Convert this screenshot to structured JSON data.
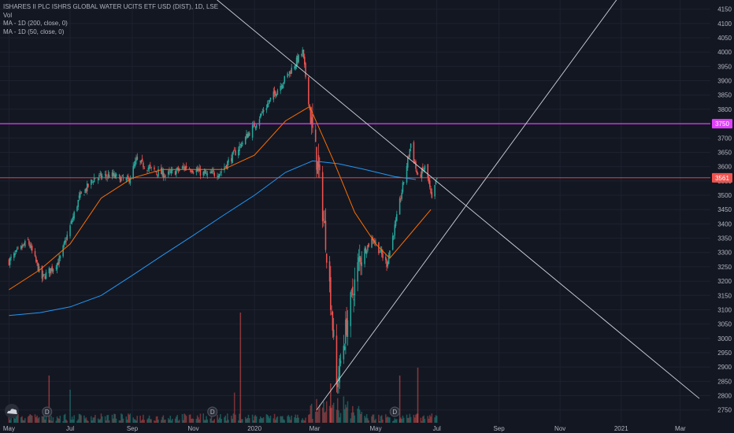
{
  "legend": {
    "title": "ISHARES II PLC ISHRS GLOBAL WATER UCITS ETF USD (DIST), 1D, LSE",
    "vol": "Vol",
    "ma200": "MA - 1D (200, close, 0)",
    "ma50": "MA - 1D (50, close, 0)"
  },
  "colors": {
    "background": "#131722",
    "grid": "#1e2230",
    "up": "#26a69a",
    "down": "#ef5350",
    "ma200": "#2196f3",
    "ma50": "#ff6d00",
    "resistance_line": "#e040fb",
    "price_line": "#ef5350",
    "trendlines": "#d1d4dc"
  },
  "price_tags": {
    "resistance": "3750",
    "current": "3561"
  },
  "chart_data": {
    "type": "candlestick",
    "title": "ISHARES II PLC ISHRS GLOBAL WATER UCITS ETF USD (DIST), 1D, LSE",
    "x_ticks": [
      "May",
      "Jul",
      "Sep",
      "Nov",
      "2020",
      "Mar",
      "May",
      "Jul",
      "Sep",
      "Nov",
      "2021",
      "Mar"
    ],
    "x_range": [
      "2019-05",
      "2021-03"
    ],
    "ylim": [
      2730,
      4160
    ],
    "y_ticks": [
      2750,
      2800,
      2850,
      2900,
      2950,
      3000,
      3050,
      3100,
      3150,
      3200,
      3250,
      3300,
      3350,
      3400,
      3450,
      3500,
      3550,
      3600,
      3650,
      3700,
      3750,
      3800,
      3850,
      3900,
      3950,
      4000,
      4050,
      4100,
      4150
    ],
    "grid": true,
    "horizontal_levels": [
      {
        "name": "resistance",
        "value": 3750
      },
      {
        "name": "last close",
        "value": 3561
      }
    ],
    "close_path": [
      {
        "date": "2019-05-01",
        "close": 3270
      },
      {
        "date": "2019-05-20",
        "close": 3340
      },
      {
        "date": "2019-06-03",
        "close": 3210
      },
      {
        "date": "2019-06-20",
        "close": 3270
      },
      {
        "date": "2019-07-10",
        "close": 3490
      },
      {
        "date": "2019-07-25",
        "close": 3560
      },
      {
        "date": "2019-08-10",
        "close": 3570
      },
      {
        "date": "2019-08-28",
        "close": 3550
      },
      {
        "date": "2019-09-05",
        "close": 3620
      },
      {
        "date": "2019-09-20",
        "close": 3590
      },
      {
        "date": "2019-10-05",
        "close": 3570
      },
      {
        "date": "2019-10-25",
        "close": 3600
      },
      {
        "date": "2019-11-15",
        "close": 3570
      },
      {
        "date": "2019-11-28",
        "close": 3580
      },
      {
        "date": "2019-12-15",
        "close": 3660
      },
      {
        "date": "2019-12-31",
        "close": 3740
      },
      {
        "date": "2020-01-20",
        "close": 3850
      },
      {
        "date": "2020-02-05",
        "close": 3930
      },
      {
        "date": "2020-02-18",
        "close": 4000
      },
      {
        "date": "2020-02-28",
        "close": 3720
      },
      {
        "date": "2020-03-05",
        "close": 3580
      },
      {
        "date": "2020-03-12",
        "close": 3350
      },
      {
        "date": "2020-03-18",
        "close": 3100
      },
      {
        "date": "2020-03-23",
        "close": 2830
      },
      {
        "date": "2020-04-02",
        "close": 3050
      },
      {
        "date": "2020-04-15",
        "close": 3280
      },
      {
        "date": "2020-04-28",
        "close": 3350
      },
      {
        "date": "2020-05-12",
        "close": 3260
      },
      {
        "date": "2020-05-22",
        "close": 3420
      },
      {
        "date": "2020-06-05",
        "close": 3680
      },
      {
        "date": "2020-06-12",
        "close": 3560
      },
      {
        "date": "2020-06-20",
        "close": 3600
      },
      {
        "date": "2020-06-26",
        "close": 3480
      },
      {
        "date": "2020-07-01",
        "close": 3561
      }
    ],
    "series": [
      {
        "name": "MA - 1D (200, close, 0)",
        "points": [
          {
            "date": "2019-05-01",
            "value": 3080
          },
          {
            "date": "2019-06-01",
            "value": 3090
          },
          {
            "date": "2019-07-01",
            "value": 3110
          },
          {
            "date": "2019-08-01",
            "value": 3150
          },
          {
            "date": "2019-09-01",
            "value": 3220
          },
          {
            "date": "2019-10-01",
            "value": 3290
          },
          {
            "date": "2019-11-01",
            "value": 3360
          },
          {
            "date": "2019-12-01",
            "value": 3430
          },
          {
            "date": "2020-01-01",
            "value": 3500
          },
          {
            "date": "2020-02-01",
            "value": 3580
          },
          {
            "date": "2020-02-28",
            "value": 3620
          },
          {
            "date": "2020-03-25",
            "value": 3610
          },
          {
            "date": "2020-04-20",
            "value": 3590
          },
          {
            "date": "2020-05-20",
            "value": 3565
          },
          {
            "date": "2020-06-10",
            "value": 3555
          }
        ]
      },
      {
        "name": "MA - 1D (50, close, 0)",
        "points": [
          {
            "date": "2019-05-01",
            "value": 3170
          },
          {
            "date": "2019-06-01",
            "value": 3240
          },
          {
            "date": "2019-07-01",
            "value": 3330
          },
          {
            "date": "2019-08-01",
            "value": 3490
          },
          {
            "date": "2019-09-01",
            "value": 3560
          },
          {
            "date": "2019-10-01",
            "value": 3590
          },
          {
            "date": "2019-11-01",
            "value": 3590
          },
          {
            "date": "2019-12-01",
            "value": 3590
          },
          {
            "date": "2020-01-01",
            "value": 3640
          },
          {
            "date": "2020-02-01",
            "value": 3760
          },
          {
            "date": "2020-02-25",
            "value": 3810
          },
          {
            "date": "2020-03-20",
            "value": 3620
          },
          {
            "date": "2020-04-10",
            "value": 3440
          },
          {
            "date": "2020-05-01",
            "value": 3330
          },
          {
            "date": "2020-05-15",
            "value": 3280
          },
          {
            "date": "2020-06-01",
            "value": 3350
          },
          {
            "date": "2020-06-25",
            "value": 3450
          }
        ]
      }
    ],
    "trendlines": [
      {
        "name": "descending",
        "from": {
          "date": "2019-10-15",
          "value": 4300
        },
        "to": {
          "date": "2021-03-20",
          "value": 2790
        }
      },
      {
        "name": "ascending",
        "from": {
          "date": "2020-03-03",
          "value": 2750
        },
        "to": {
          "date": "2020-12-31",
          "value": 4200
        }
      }
    ],
    "dividend_markers": [
      "2019-06-08",
      "2019-11-20",
      "2020-05-20"
    ]
  }
}
